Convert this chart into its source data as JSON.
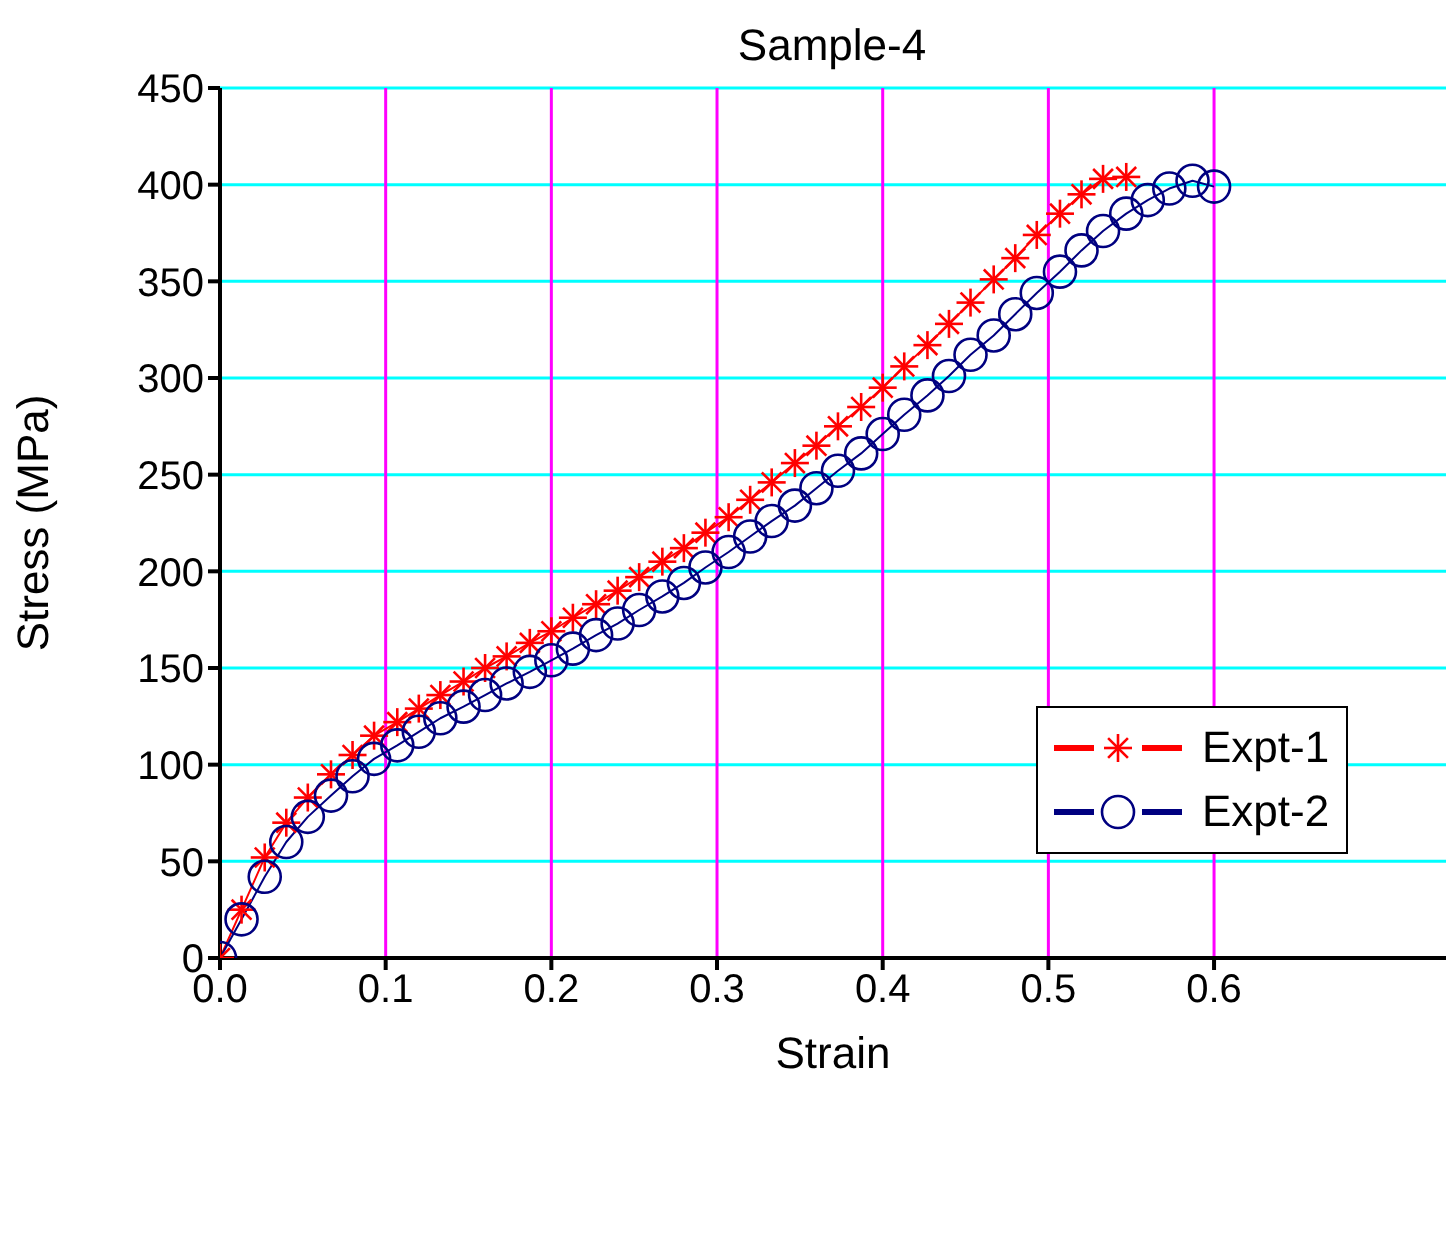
{
  "chart_data": {
    "type": "line",
    "title": "Sample-4",
    "xlabel": "Strain",
    "ylabel": "Stress (MPa)",
    "xlim": [
      0,
      0.74
    ],
    "xticks": [
      {
        "value": 0,
        "label": "0.0"
      },
      {
        "value": 0.1,
        "label": "0.1"
      },
      {
        "value": 0.2,
        "label": "0.2"
      },
      {
        "value": 0.3,
        "label": "0.3"
      },
      {
        "value": 0.4,
        "label": "0.4"
      },
      {
        "value": 0.5,
        "label": "0.5"
      },
      {
        "value": 0.6,
        "label": "0.6"
      }
    ],
    "ylim": [
      0,
      450
    ],
    "yticks": [
      0,
      50,
      100,
      150,
      200,
      250,
      300,
      350,
      400,
      450
    ],
    "grid": true,
    "legend": "right",
    "line_style": "solid",
    "series": [
      {
        "name": "Expt-1",
        "color": "#ff0000",
        "marker": "cross",
        "x": [
          0,
          0.013,
          0.027,
          0.04,
          0.053,
          0.067,
          0.08,
          0.093,
          0.107,
          0.12,
          0.133,
          0.147,
          0.16,
          0.173,
          0.187,
          0.2,
          0.213,
          0.227,
          0.24,
          0.253,
          0.267,
          0.28,
          0.293,
          0.307,
          0.32,
          0.333,
          0.347,
          0.36,
          0.373,
          0.387,
          0.4,
          0.413,
          0.427,
          0.44,
          0.453,
          0.467,
          0.48,
          0.493,
          0.507,
          0.52,
          0.533,
          0.547
        ],
        "values": [
          0,
          25,
          52,
          70,
          83,
          95,
          105,
          115,
          122,
          129,
          136,
          143,
          150,
          156,
          163,
          169,
          176,
          183,
          190,
          197,
          205,
          212,
          220,
          228,
          237,
          246,
          256,
          265,
          275,
          285,
          295,
          306,
          317,
          328,
          339,
          351,
          362,
          374,
          385,
          395,
          403,
          404
        ]
      },
      {
        "name": "Expt-2",
        "color": "#000080",
        "marker": "circle",
        "x": [
          0,
          0.013,
          0.027,
          0.04,
          0.053,
          0.067,
          0.08,
          0.093,
          0.107,
          0.12,
          0.133,
          0.147,
          0.16,
          0.173,
          0.187,
          0.2,
          0.213,
          0.227,
          0.24,
          0.253,
          0.267,
          0.28,
          0.293,
          0.307,
          0.32,
          0.333,
          0.347,
          0.36,
          0.373,
          0.387,
          0.4,
          0.413,
          0.427,
          0.44,
          0.453,
          0.467,
          0.48,
          0.493,
          0.507,
          0.52,
          0.533,
          0.547,
          0.56,
          0.573,
          0.587,
          0.6
        ],
        "values": [
          0,
          20,
          42,
          60,
          73,
          84,
          94,
          103,
          110,
          117,
          124,
          130,
          136,
          142,
          148,
          154,
          160,
          167,
          173,
          180,
          187,
          194,
          202,
          210,
          218,
          226,
          234,
          243,
          252,
          261,
          271,
          281,
          291,
          301,
          312,
          322,
          333,
          344,
          355,
          366,
          376,
          385,
          392,
          398,
          402,
          399
        ]
      }
    ]
  }
}
